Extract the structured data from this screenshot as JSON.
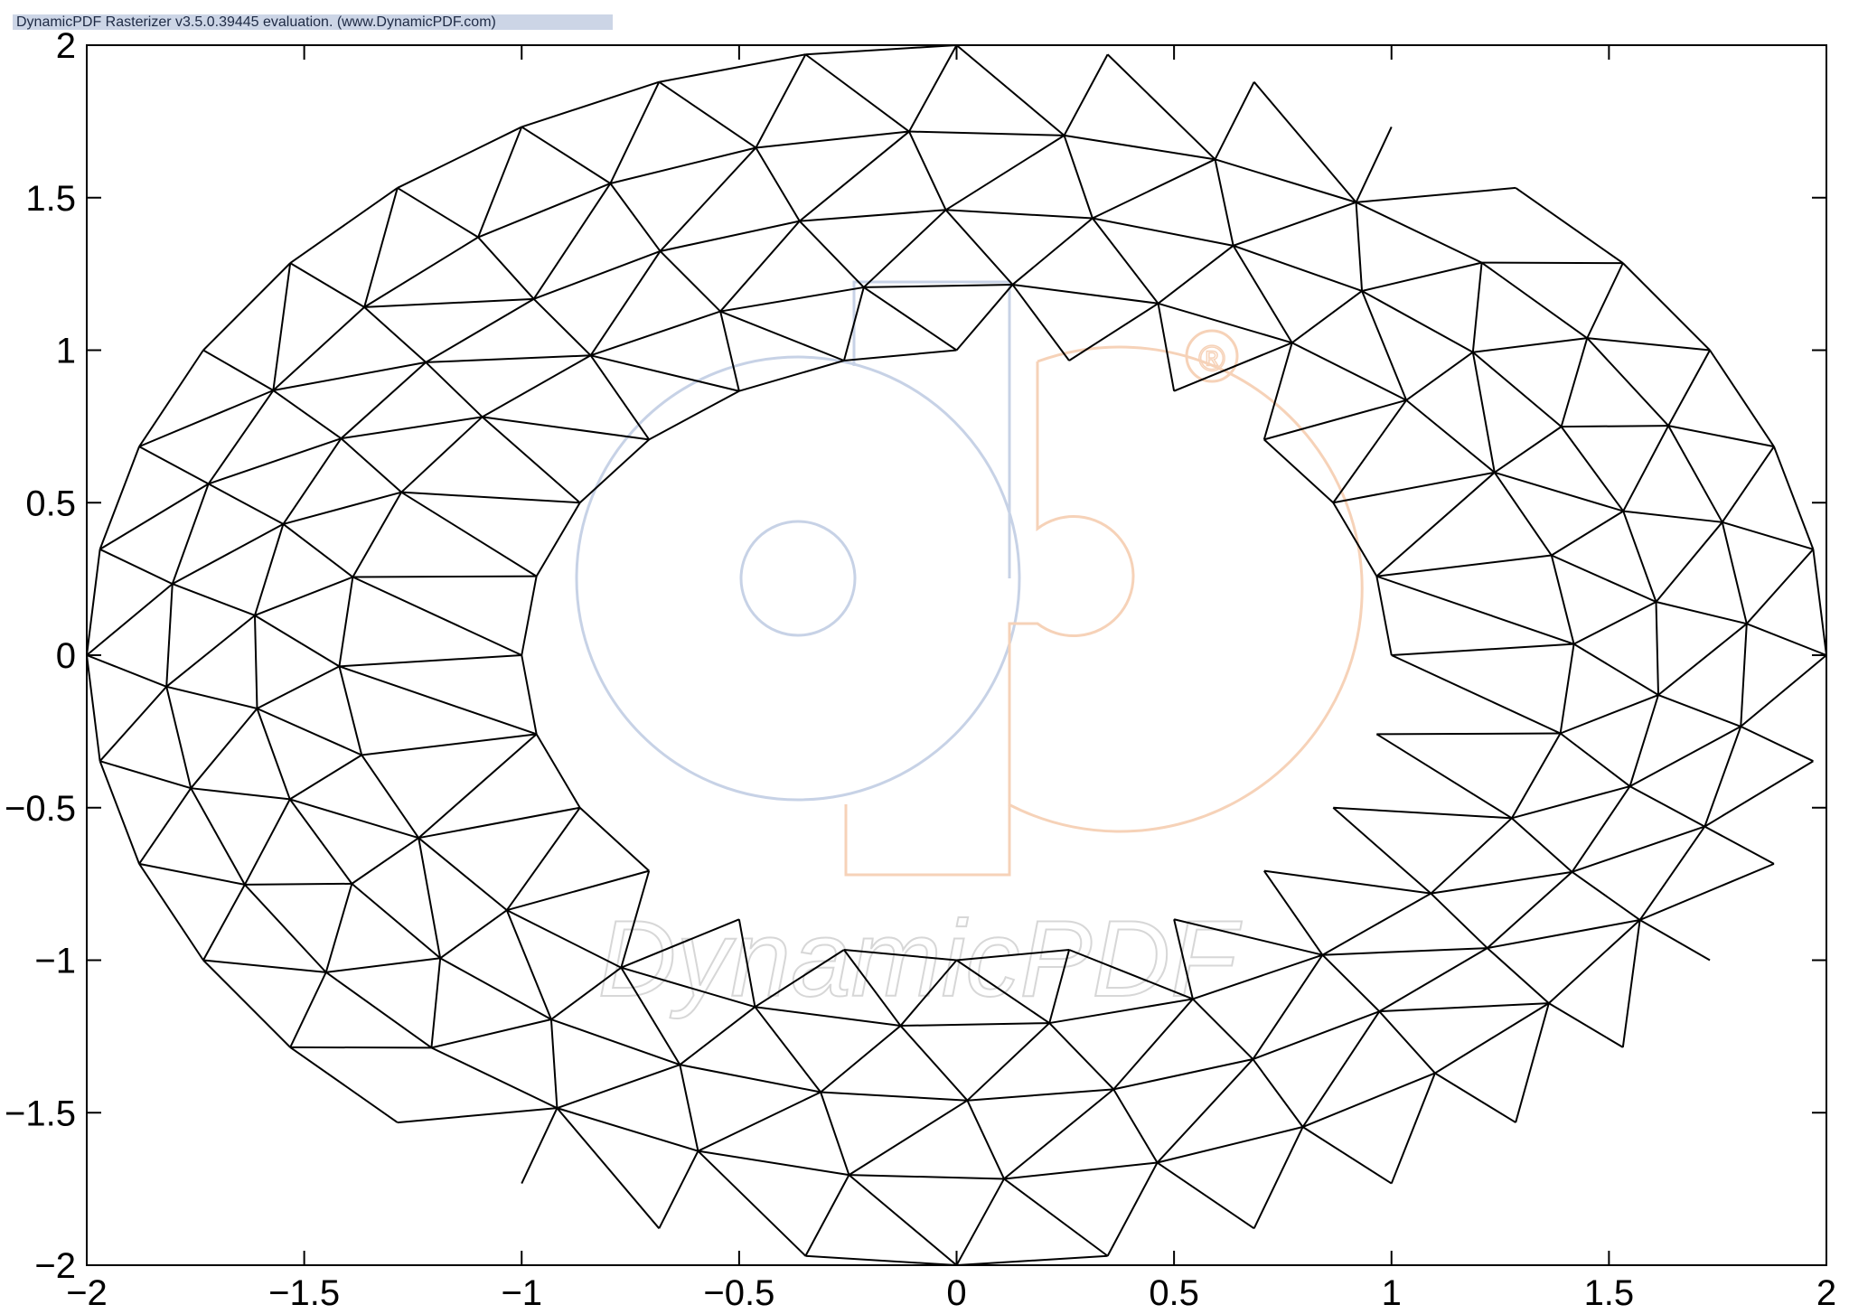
{
  "banner": {
    "text": "DynamicPDF Rasterizer v3.5.0.39445 evaluation. (www.DynamicPDF.com)"
  },
  "watermark": {
    "logo_text": "DynamicPDF",
    "registered_mark": "®"
  },
  "colors": {
    "mesh": "#000000",
    "banner_bg": "#ccd5e6",
    "watermark_blue": "#c7d2e6",
    "watermark_orange": "#f6d2b8",
    "watermark_text": "#d7d7d7"
  },
  "chart_data": {
    "type": "mesh",
    "title": "",
    "xlabel": "",
    "ylabel": "",
    "xlim": [
      -2,
      2
    ],
    "ylim": [
      -2,
      2
    ],
    "grid": false,
    "xticks": [
      -2,
      -1.5,
      -1,
      -0.5,
      0,
      0.5,
      1,
      1.5,
      2
    ],
    "yticks": [
      -2,
      -1.5,
      -1,
      -0.5,
      0,
      0.5,
      1,
      1.5,
      2
    ],
    "xtick_labels": [
      "−2",
      "−1.5",
      "−1",
      "−0.5",
      "0",
      "0.5",
      "1",
      "1.5",
      "2"
    ],
    "ytick_labels": [
      "−2",
      "−1.5",
      "−1",
      "−0.5",
      "0",
      "0.5",
      "1",
      "1.5",
      "2"
    ],
    "mesh": {
      "description_rings": [
        {
          "a": 2.0,
          "b": 2.0,
          "n": 36,
          "phase": 0
        },
        {
          "a": 1.82,
          "b": 1.72,
          "n": 32,
          "phase": 0.06
        },
        {
          "a": 1.62,
          "b": 1.46,
          "n": 30,
          "phase": 0.12
        },
        {
          "a": 1.42,
          "b": 1.22,
          "n": 26,
          "phase": 0.03
        },
        {
          "a": 1.0,
          "b": 1.0,
          "n": 24,
          "phase": 0
        }
      ]
    }
  }
}
